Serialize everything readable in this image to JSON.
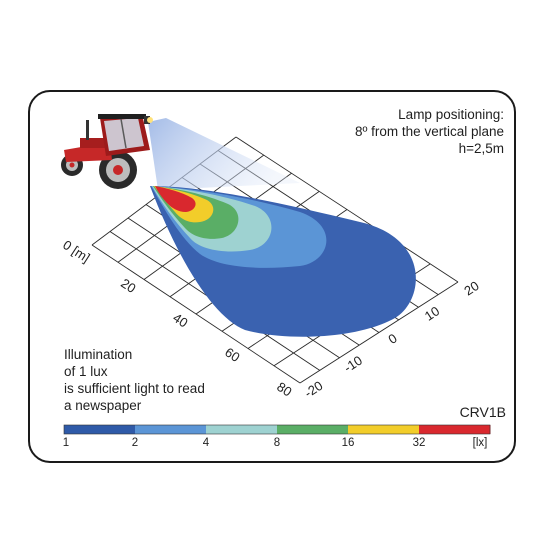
{
  "lamp_positioning": {
    "line1": "Lamp positioning:",
    "line2": "8º from the vertical plane",
    "line3": "h=2,5m"
  },
  "illumination_note": {
    "line1": "Illumination",
    "line2": "of 1 lux",
    "line3": "is sufficient light to read",
    "line4": "a newspaper"
  },
  "model": "CRV1B",
  "distance_axis": {
    "unit_label": "0 [m]",
    "ticks": [
      "20",
      "40",
      "60",
      "80"
    ]
  },
  "lateral_axis": {
    "ticks": [
      "20",
      "10",
      "0",
      "-10",
      "-20"
    ]
  },
  "legend": {
    "values": [
      "1",
      "2",
      "4",
      "8",
      "16",
      "32"
    ],
    "unit": "[lx]",
    "colors": [
      "#2f5aa8",
      "#5b95d6",
      "#9ed2d1",
      "#5aae66",
      "#f2cd2a",
      "#d9282e"
    ]
  },
  "zone_colors": {
    "lx1": "#3a62b0",
    "lx2": "#5b95d6",
    "lx4": "#9ed2d1",
    "lx8": "#5aae66",
    "lx16": "#f2cd2a",
    "lx32": "#d9282e"
  },
  "icons": {
    "vehicle": "tractor-icon",
    "beam": "light-beam"
  }
}
